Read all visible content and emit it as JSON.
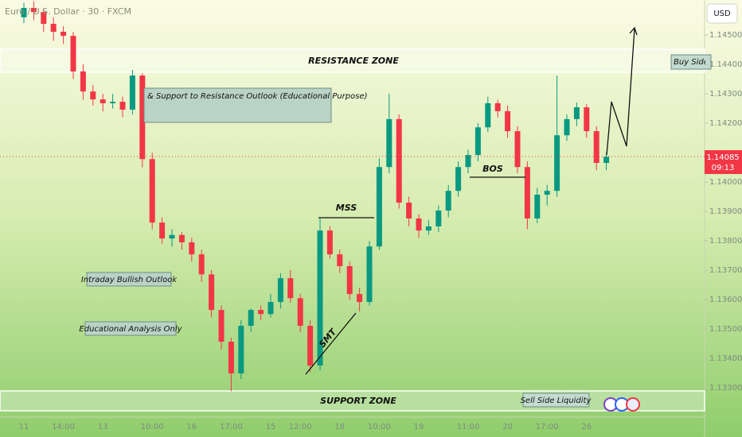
{
  "chart_data": {
    "type": "candlestick",
    "title": "Euro / U.S. Dollar · 30 · FXCM",
    "currency": "USD",
    "annotations": {
      "resistance": "RESISTANCE ZONE",
      "support": "SUPPORT ZONE",
      "outlook": "& Support to Resistance Outlook (Educational Purpose)",
      "bullish": "Intraday Bullish Outlook",
      "educational": "Educational Analysis Only",
      "buy_side": "Buy Side Liquidity",
      "sell_side": "Sell Side Liquidity",
      "mss": "MSS",
      "bos": "BOS",
      "smt": "SMT"
    },
    "last_price": 1.14085,
    "countdown": "09:13",
    "up_color": "#089981",
    "down_color": "#f23645",
    "ylim": [
      1.13214,
      1.14619
    ],
    "yticks": [
      {
        "value": 1.145,
        "label": "1.14500"
      },
      {
        "value": 1.144,
        "label": "1.14400"
      },
      {
        "value": 1.143,
        "label": "1.14300"
      },
      {
        "value": 1.142,
        "label": "1.14200"
      },
      {
        "value": 1.14,
        "label": "1.14000"
      },
      {
        "value": 1.139,
        "label": "1.13900"
      },
      {
        "value": 1.138,
        "label": "1.13800"
      },
      {
        "value": 1.137,
        "label": "1.13700"
      },
      {
        "value": 1.136,
        "label": "1.13600"
      },
      {
        "value": 1.135,
        "label": "1.13500"
      },
      {
        "value": 1.134,
        "label": "1.13400"
      },
      {
        "value": 1.133,
        "label": "1.13300"
      }
    ],
    "categories": [
      "11",
      null,
      null,
      null,
      "14:00",
      null,
      null,
      null,
      "13",
      null,
      null,
      null,
      null,
      "10:00",
      null,
      null,
      null,
      "16",
      null,
      null,
      null,
      "17:00",
      null,
      null,
      null,
      "15",
      null,
      null,
      "12:00",
      null,
      null,
      null,
      "18",
      null,
      null,
      null,
      "10:00",
      null,
      null,
      null,
      "19",
      null,
      null,
      null,
      null,
      "11:00",
      null,
      null,
      null,
      "20",
      null,
      null,
      null,
      "17:00",
      null,
      null,
      null,
      "26",
      null,
      null
    ],
    "candles": [
      [
        1.1456,
        1.1461,
        1.1454,
        1.14592
      ],
      [
        1.14592,
        1.14615,
        1.1455,
        1.14578
      ],
      [
        1.14578,
        1.1459,
        1.1451,
        1.14538
      ],
      [
        1.14538,
        1.1456,
        1.1448,
        1.14511
      ],
      [
        1.14511,
        1.1453,
        1.1447,
        1.14497
      ],
      [
        1.14497,
        1.1451,
        1.1435,
        1.14376
      ],
      [
        1.14376,
        1.144,
        1.1428,
        1.14308
      ],
      [
        1.14308,
        1.1433,
        1.1426,
        1.14281
      ],
      [
        1.14281,
        1.143,
        1.1424,
        1.14268
      ],
      [
        1.14268,
        1.143,
        1.1425,
        1.14273
      ],
      [
        1.14273,
        1.1429,
        1.1422,
        1.14246
      ],
      [
        1.14246,
        1.14381,
        1.1423,
        1.14362
      ],
      [
        1.14362,
        1.1437,
        1.1405,
        1.14078
      ],
      [
        1.14078,
        1.141,
        1.1384,
        1.13862
      ],
      [
        1.13862,
        1.1388,
        1.1379,
        1.13808
      ],
      [
        1.13808,
        1.1384,
        1.1378,
        1.1382
      ],
      [
        1.1382,
        1.1383,
        1.1377,
        1.13795
      ],
      [
        1.13795,
        1.1381,
        1.1373,
        1.13754
      ],
      [
        1.13754,
        1.1377,
        1.1366,
        1.13686
      ],
      [
        1.13686,
        1.137,
        1.1354,
        1.13565
      ],
      [
        1.13565,
        1.1358,
        1.1343,
        1.13457
      ],
      [
        1.13457,
        1.1347,
        1.13289,
        1.13349
      ],
      [
        1.13349,
        1.1353,
        1.1333,
        1.13511
      ],
      [
        1.13511,
        1.1357,
        1.1349,
        1.13565
      ],
      [
        1.13565,
        1.1358,
        1.1353,
        1.13551
      ],
      [
        1.13551,
        1.1362,
        1.1354,
        1.13592
      ],
      [
        1.13592,
        1.1369,
        1.1357,
        1.13673
      ],
      [
        1.13673,
        1.137,
        1.1359,
        1.13605
      ],
      [
        1.13605,
        1.1362,
        1.1349,
        1.13511
      ],
      [
        1.13511,
        1.1353,
        1.13354,
        1.13376
      ],
      [
        1.13376,
        1.13876,
        1.1336,
        1.13835
      ],
      [
        1.13835,
        1.1385,
        1.1374,
        1.13754
      ],
      [
        1.13754,
        1.1377,
        1.1369,
        1.13714
      ],
      [
        1.13714,
        1.1373,
        1.136,
        1.13619
      ],
      [
        1.13619,
        1.1364,
        1.1356,
        1.13592
      ],
      [
        1.13592,
        1.138,
        1.1358,
        1.13781
      ],
      [
        1.13781,
        1.1408,
        1.1377,
        1.14051
      ],
      [
        1.14051,
        1.143,
        1.1403,
        1.14214
      ],
      [
        1.14214,
        1.1423,
        1.1391,
        1.1393
      ],
      [
        1.1393,
        1.1395,
        1.1385,
        1.13876
      ],
      [
        1.13876,
        1.1389,
        1.1381,
        1.13835
      ],
      [
        1.13835,
        1.1387,
        1.1382,
        1.13849
      ],
      [
        1.13849,
        1.1392,
        1.1383,
        1.13903
      ],
      [
        1.13903,
        1.1399,
        1.1388,
        1.1397
      ],
      [
        1.1397,
        1.1407,
        1.1395,
        1.14051
      ],
      [
        1.14051,
        1.1411,
        1.1403,
        1.14092
      ],
      [
        1.14092,
        1.142,
        1.1407,
        1.14186
      ],
      [
        1.14186,
        1.1429,
        1.1417,
        1.14268
      ],
      [
        1.14268,
        1.1428,
        1.1422,
        1.14241
      ],
      [
        1.14241,
        1.1426,
        1.1415,
        1.14173
      ],
      [
        1.14173,
        1.1419,
        1.1403,
        1.14051
      ],
      [
        1.14051,
        1.1407,
        1.1384,
        1.13876
      ],
      [
        1.13876,
        1.1398,
        1.1386,
        1.13957
      ],
      [
        1.13957,
        1.1399,
        1.1392,
        1.1397
      ],
      [
        1.1397,
        1.14362,
        1.1395,
        1.14159
      ],
      [
        1.14159,
        1.1423,
        1.1414,
        1.14214
      ],
      [
        1.14214,
        1.1427,
        1.1419,
        1.14254
      ],
      [
        1.14254,
        1.14265,
        1.1415,
        1.14173
      ],
      [
        1.14173,
        1.1419,
        1.1404,
        1.14065
      ],
      [
        1.14065,
        1.141,
        1.1404,
        1.14086
      ]
    ]
  }
}
